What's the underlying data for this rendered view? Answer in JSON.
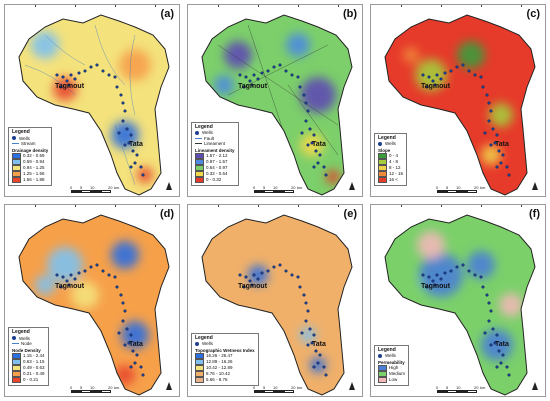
{
  "cities": {
    "tagmout": "Tagmout",
    "tata": "Tata"
  },
  "scale": {
    "labels": [
      "0",
      "5",
      "10",
      "20"
    ],
    "unit": "km"
  },
  "panels": [
    {
      "label": "(a)",
      "palette": [
        "#2c6fe0",
        "#7ec1f0",
        "#f4e27c",
        "#f6a04a",
        "#e8452b"
      ],
      "legend": {
        "title": "Legend",
        "wells": "Wells",
        "line": "Stream",
        "line2": "",
        "variable": "Drainage density",
        "classes": [
          {
            "label": "0.32 - 0.59",
            "color": "#2c6fe0"
          },
          {
            "label": "0.59 - 0.94",
            "color": "#7ec1f0"
          },
          {
            "label": "0.94 - 1.25",
            "color": "#f4e27c"
          },
          {
            "label": "1.25 - 1.56",
            "color": "#f6a04a"
          },
          {
            "label": "1.56 - 1.88",
            "color": "#e8452b"
          }
        ]
      }
    },
    {
      "label": "(b)",
      "palette": [
        "#5e4bb3",
        "#4d8be0",
        "#7ccf6a",
        "#f2d94a",
        "#e63a2a"
      ],
      "legend": {
        "title": "Legend",
        "wells": "Wells",
        "line": "Fault",
        "line2": "Lineament",
        "variable": "Lineament density",
        "classes": [
          {
            "label": "1.57 - 2.12",
            "color": "#5e4bb3"
          },
          {
            "label": "0.97 - 1.57",
            "color": "#4d8be0"
          },
          {
            "label": "0.64 - 0.97",
            "color": "#7ccf6a"
          },
          {
            "label": "0.32 - 0.64",
            "color": "#f2d94a"
          },
          {
            "label": "0 - 0.32",
            "color": "#e63a2a"
          }
        ]
      }
    },
    {
      "label": "(c)",
      "palette": [
        "#3a9b3a",
        "#a5cc3a",
        "#f0d24a",
        "#f08a3a",
        "#e63a2a"
      ],
      "legend": {
        "title": "Legend",
        "wells": "Wells",
        "line": "",
        "line2": "",
        "variable": "Slope",
        "classes": [
          {
            "label": "0 - 4",
            "color": "#3a9b3a"
          },
          {
            "label": "4 - 8",
            "color": "#a5cc3a"
          },
          {
            "label": "8 - 12",
            "color": "#f0d24a"
          },
          {
            "label": "12 - 16",
            "color": "#f08a3a"
          },
          {
            "label": "16 <",
            "color": "#e63a2a"
          }
        ]
      }
    },
    {
      "label": "(d)",
      "palette": [
        "#2c6fe0",
        "#7ec1f0",
        "#f4e27c",
        "#f6a04a",
        "#e8452b"
      ],
      "legend": {
        "title": "Legend",
        "wells": "Wells",
        "line": "Node",
        "line2": "",
        "variable": "Node Density",
        "classes": [
          {
            "label": "1.15 - 2.44",
            "color": "#2c6fe0"
          },
          {
            "label": "0.63 - 1.15",
            "color": "#7ec1f0"
          },
          {
            "label": "0.49 - 0.63",
            "color": "#f4e27c"
          },
          {
            "label": "0.21 - 0.49",
            "color": "#f6a04a"
          },
          {
            "label": "0 - 0.21",
            "color": "#e8452b"
          }
        ]
      }
    },
    {
      "label": "(e)",
      "palette": [
        "#2c6fe0",
        "#7ec1f0",
        "#f4e27c",
        "#f0b06a",
        "#e8b28a"
      ],
      "legend": {
        "title": "Legend",
        "wells": "Wells",
        "line": "",
        "line2": "",
        "variable": "Topographic Wetness Index",
        "classes": [
          {
            "label": "16.26 - 26.47",
            "color": "#2c6fe0"
          },
          {
            "label": "12.89 - 16.26",
            "color": "#7ec1f0"
          },
          {
            "label": "10.42 - 12.89",
            "color": "#f4e27c"
          },
          {
            "label": "8.76 - 10.42",
            "color": "#f0b06a"
          },
          {
            "label": "5.66 - 8.76",
            "color": "#e8b28a"
          }
        ]
      }
    },
    {
      "label": "(f)",
      "palette": [
        "#4b7fd6",
        "#7bd06a",
        "#f2b8b8"
      ],
      "legend": {
        "title": "Legend",
        "wells": "Wells",
        "line": "",
        "line2": "",
        "variable": "Permeability",
        "classes": [
          {
            "label": "High",
            "color": "#4b7fd6"
          },
          {
            "label": "Medium",
            "color": "#7bd06a"
          },
          {
            "label": "Low",
            "color": "#f2b8b8"
          }
        ]
      }
    }
  ]
}
